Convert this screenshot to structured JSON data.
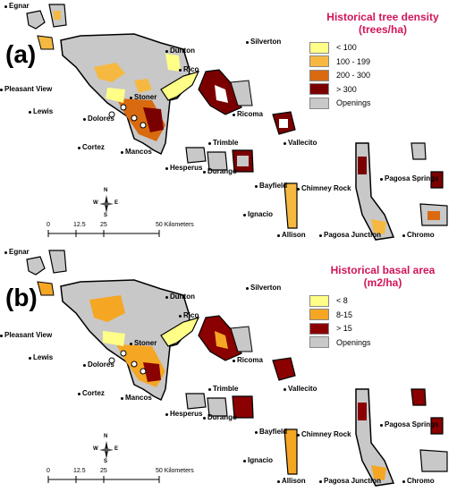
{
  "colors": {
    "density_lt100": "#ffff88",
    "density_100_199": "#f5b942",
    "density_200_300": "#d96a10",
    "density_gt300": "#7a0000",
    "openings": "#c8c8c8",
    "basal_lt8": "#ffff88",
    "basal_8_15": "#f5a623",
    "basal_gt15": "#8b0000",
    "legend_title": "#d2145a"
  },
  "panels": [
    {
      "label": "(a)",
      "legend": {
        "title_line1": "Historical tree density",
        "title_line2": "(trees/ha)",
        "items": [
          {
            "label": "< 100",
            "color": "#ffff88"
          },
          {
            "label": "100 - 199",
            "color": "#f5b942"
          },
          {
            "label": "200 - 300",
            "color": "#d96a10"
          },
          {
            "label": "> 300",
            "color": "#7a0000"
          },
          {
            "label": "Openings",
            "color": "#c8c8c8"
          }
        ]
      }
    },
    {
      "label": "(b)",
      "legend": {
        "title_line1": "Historical basal area",
        "title_line2": "(m2/ha)",
        "items": [
          {
            "label": "< 8",
            "color": "#ffff88"
          },
          {
            "label": "8-15",
            "color": "#f5a623"
          },
          {
            "label": "> 15",
            "color": "#8b0000"
          },
          {
            "label": "Openings",
            "color": "#c8c8c8"
          }
        ]
      }
    }
  ],
  "towns": {
    "egnar": "Egnar",
    "dunton": "Dunton",
    "silverton": "Silverton",
    "rico": "Rico",
    "pleasant_view": "Pleasant View",
    "stoner": "Stoner",
    "lewis": "Lewis",
    "dolores": "Dolores",
    "ricoma": "Ricoma",
    "vallecito": "Vallecito",
    "trimble": "Trimble",
    "cortez": "Cortez",
    "mancos": "Mancos",
    "hesperus": "Hesperus",
    "durango": "Durango",
    "pagosa_springs": "Pagosa Springs",
    "bayfield": "Bayfield",
    "chimney_rock": "Chimney Rock",
    "ignacio": "Ignacio",
    "allison": "Allison",
    "pagosa_junction": "Pagosa Junction",
    "chromo": "Chromo"
  },
  "scale": {
    "ticks": [
      "0",
      "12.5",
      "25",
      "50 Kilometers"
    ]
  },
  "compass": {
    "n": "N",
    "s": "S",
    "e": "E",
    "w": "W"
  }
}
